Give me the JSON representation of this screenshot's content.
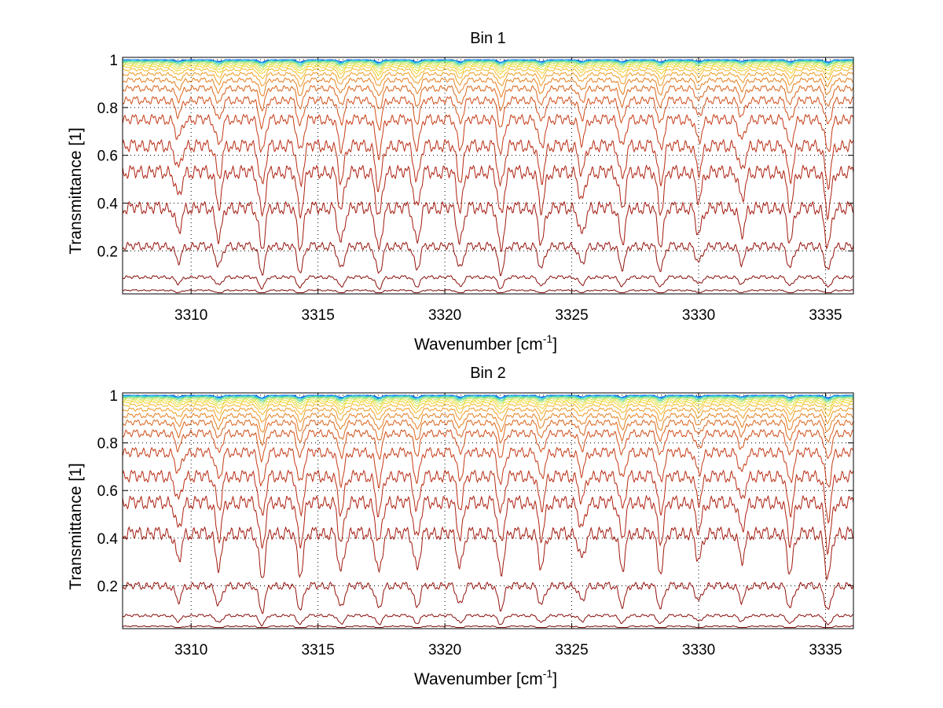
{
  "chart_data": [
    {
      "type": "line",
      "title": "Bin 1",
      "xlabel": "Wavenumber [cm",
      "xlabel_sup": "-1",
      "xlabel_close": "]",
      "ylabel": "Transmittance [1]",
      "xlim": [
        3307.3,
        3336.1
      ],
      "ylim": [
        0.02,
        1.01
      ],
      "xticks": [
        "3310",
        "3315",
        "3320",
        "3325",
        "3330",
        "3335"
      ],
      "yticks": [
        "0.2",
        "0.4",
        "0.6",
        "0.8",
        "1"
      ],
      "grid": true,
      "colormap": "jet (blue at top curves, through cyan, yellow, orange, to dark red at bottom curves)",
      "curve_levels": [
        1.0,
        0.999,
        0.998,
        0.996,
        0.993,
        0.99,
        0.985,
        0.978,
        0.97,
        0.958,
        0.94,
        0.915,
        0.88,
        0.83,
        0.75,
        0.64,
        0.53,
        0.38,
        0.22,
        0.09,
        0.035
      ],
      "curve_colors": [
        "#0b3fd8",
        "#0f6fe6",
        "#1aa0ec",
        "#2fc8d4",
        "#55d8a8",
        "#8ce07a",
        "#bfe255",
        "#e3e03c",
        "#f2d02e",
        "#f4b828",
        "#ee9a22",
        "#e57e1e",
        "#da641b",
        "#cf4d18",
        "#c43a16",
        "#b82b13",
        "#ac2010",
        "#a0180d",
        "#93120b",
        "#870e0a",
        "#7a0a08"
      ],
      "absorption_lines": [
        {
          "x": 3309.5,
          "depth": 0.55
        },
        {
          "x": 3311.1,
          "depth": 0.7
        },
        {
          "x": 3312.8,
          "depth": 0.9
        },
        {
          "x": 3314.3,
          "depth": 0.85
        },
        {
          "x": 3315.9,
          "depth": 0.8
        },
        {
          "x": 3317.4,
          "depth": 1.0
        },
        {
          "x": 3318.9,
          "depth": 0.75
        },
        {
          "x": 3320.6,
          "depth": 0.75
        },
        {
          "x": 3322.2,
          "depth": 0.9
        },
        {
          "x": 3323.8,
          "depth": 0.8
        },
        {
          "x": 3325.4,
          "depth": 0.65
        },
        {
          "x": 3327.0,
          "depth": 0.75
        },
        {
          "x": 3328.5,
          "depth": 0.8
        },
        {
          "x": 3330.0,
          "depth": 0.6
        },
        {
          "x": 3331.7,
          "depth": 0.6
        },
        {
          "x": 3333.6,
          "depth": 0.75
        },
        {
          "x": 3335.1,
          "depth": 0.9
        }
      ]
    },
    {
      "type": "line",
      "title": "Bin 2",
      "xlabel": "Wavenumber [cm",
      "xlabel_sup": "-1",
      "xlabel_close": "]",
      "ylabel": "Transmittance [1]",
      "xlim": [
        3307.3,
        3336.1
      ],
      "ylim": [
        0.02,
        1.01
      ],
      "xticks": [
        "3310",
        "3315",
        "3320",
        "3325",
        "3330",
        "3335"
      ],
      "yticks": [
        "0.2",
        "0.4",
        "0.6",
        "0.8",
        "1"
      ],
      "grid": true,
      "colormap": "jet (blue at top curves, through cyan, yellow, orange, to dark red at bottom curves)",
      "curve_levels": [
        1.0,
        0.999,
        0.998,
        0.996,
        0.993,
        0.99,
        0.985,
        0.978,
        0.97,
        0.958,
        0.94,
        0.915,
        0.885,
        0.84,
        0.76,
        0.66,
        0.55,
        0.42,
        0.2,
        0.075,
        0.03
      ],
      "curve_colors": [
        "#0b3fd8",
        "#0f6fe6",
        "#1aa0ec",
        "#2fc8d4",
        "#55d8a8",
        "#8ce07a",
        "#bfe255",
        "#e3e03c",
        "#f2d02e",
        "#f4b828",
        "#ee9a22",
        "#e57e1e",
        "#da641b",
        "#cf4d18",
        "#c43a16",
        "#b82b13",
        "#ac2010",
        "#a0180d",
        "#93120b",
        "#870e0a",
        "#7a0a08"
      ],
      "absorption_lines": [
        {
          "x": 3309.5,
          "depth": 0.6
        },
        {
          "x": 3311.1,
          "depth": 0.75
        },
        {
          "x": 3312.8,
          "depth": 0.95
        },
        {
          "x": 3314.3,
          "depth": 0.85
        },
        {
          "x": 3315.9,
          "depth": 0.85
        },
        {
          "x": 3317.4,
          "depth": 0.9
        },
        {
          "x": 3318.9,
          "depth": 0.75
        },
        {
          "x": 3320.6,
          "depth": 0.7
        },
        {
          "x": 3322.2,
          "depth": 0.85
        },
        {
          "x": 3323.8,
          "depth": 0.75
        },
        {
          "x": 3325.4,
          "depth": 0.6
        },
        {
          "x": 3327.0,
          "depth": 0.75
        },
        {
          "x": 3328.5,
          "depth": 0.8
        },
        {
          "x": 3330.0,
          "depth": 0.6
        },
        {
          "x": 3331.7,
          "depth": 0.6
        },
        {
          "x": 3333.6,
          "depth": 0.85
        },
        {
          "x": 3335.1,
          "depth": 1.0
        }
      ]
    }
  ]
}
